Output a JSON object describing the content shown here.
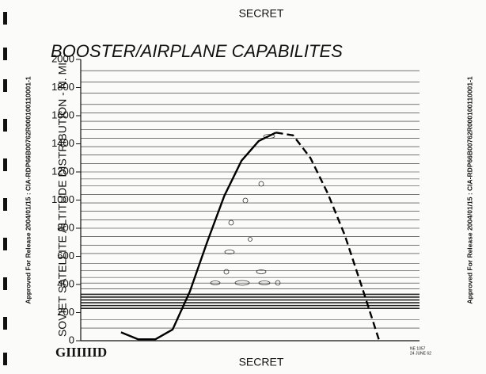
{
  "header": {
    "classification": "SECRET"
  },
  "footer": {
    "classification": "SECRET",
    "logo": "GIIIIIID",
    "stamp": [
      "NE 1057",
      "24 JUNE 62"
    ]
  },
  "release_notes": {
    "left": "Approved For Release 2004/01/15 : CIA-RDP66B00762R000100110001-1",
    "right": "Approved For Release 2004/01/15 : CIA-RDP66B00762R000100110001-1"
  },
  "chart_data": {
    "type": "line",
    "title": "BOOSTER/AIRPLANE CAPABILITES",
    "ylabel": "SOVIET SATELLITE ALTITUDE DISTRIBUTION - N. MI.",
    "ylim": [
      0,
      2000
    ],
    "yticks": [
      0,
      200,
      400,
      600,
      800,
      1000,
      1200,
      1400,
      1600,
      1800,
      2000
    ],
    "satellite_altitudes": [
      90,
      150,
      230,
      250,
      270,
      290,
      310,
      330,
      370,
      410,
      450,
      500,
      550,
      620,
      680,
      740,
      800,
      860,
      920,
      980,
      1040,
      1100,
      1150,
      1200,
      1260,
      1320,
      1380,
      1440,
      1500,
      1560,
      1620,
      1680,
      1760,
      1840,
      1920
    ],
    "categories": [
      null,
      null,
      null,
      null,
      null,
      null,
      null,
      null,
      null,
      null,
      null,
      null,
      null,
      null,
      null,
      null
    ],
    "series": [
      {
        "color": "#000000",
        "dash": false,
        "values": [
          60,
          10,
          10,
          80,
          350,
          700,
          1030,
          1280,
          1420,
          1480,
          null,
          null,
          null,
          null,
          null,
          null
        ]
      },
      {
        "color": "#000000",
        "dash": true,
        "values": [
          null,
          null,
          null,
          null,
          null,
          null,
          null,
          null,
          null,
          1480,
          1460,
          1300,
          1050,
          750,
          380,
          0
        ]
      }
    ]
  }
}
